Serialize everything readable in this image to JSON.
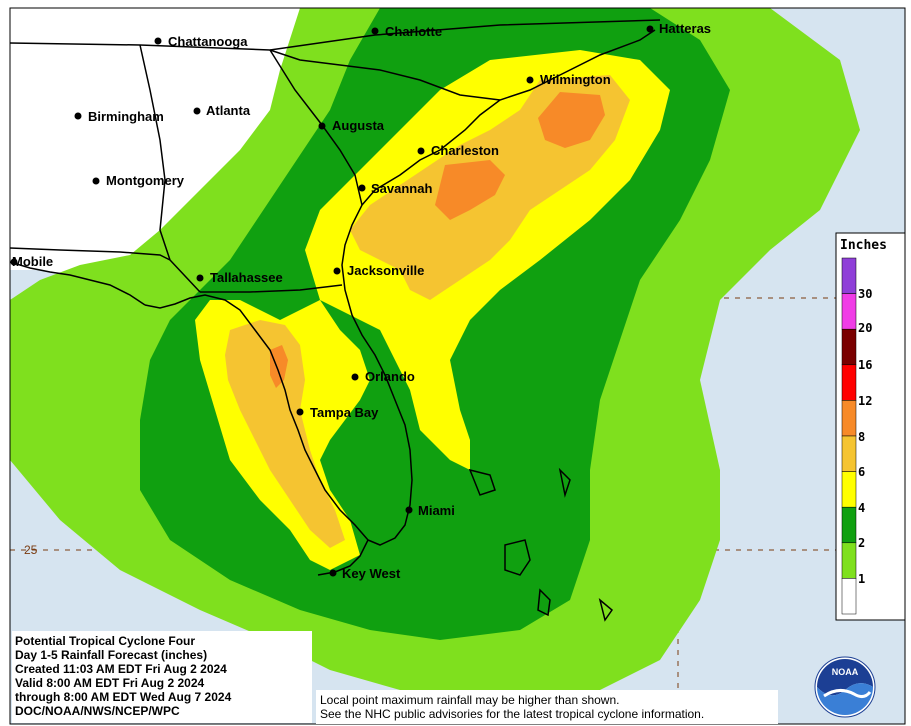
{
  "map": {
    "cities": [
      {
        "id": "chattanooga",
        "name": "Chattanooga"
      },
      {
        "id": "charlotte",
        "name": "Charlotte"
      },
      {
        "id": "hatteras",
        "name": "Hatteras"
      },
      {
        "id": "birmingham",
        "name": "Birmingham"
      },
      {
        "id": "atlanta",
        "name": "Atlanta"
      },
      {
        "id": "wilmington",
        "name": "Wilmington"
      },
      {
        "id": "augusta",
        "name": "Augusta"
      },
      {
        "id": "charleston",
        "name": "Charleston"
      },
      {
        "id": "montgomery",
        "name": "Montgomery"
      },
      {
        "id": "savannah",
        "name": "Savannah"
      },
      {
        "id": "mobile",
        "name": "Mobile"
      },
      {
        "id": "tallahassee",
        "name": "Tallahassee"
      },
      {
        "id": "jacksonville",
        "name": "Jacksonville"
      },
      {
        "id": "orlando",
        "name": "Orlando"
      },
      {
        "id": "tampa",
        "name": "Tampa Bay"
      },
      {
        "id": "miami",
        "name": "Miami"
      },
      {
        "id": "keywest",
        "name": "Key West"
      }
    ],
    "latitude_label": "25",
    "colors": {
      "ocean": "#d6e4f0",
      "land": "#ffffff",
      "lt_green": "#7fe01e",
      "green": "#10a010",
      "yellow": "#ffff00",
      "gold": "#f5c431",
      "orange": "#f78a28"
    }
  },
  "legend": {
    "title": "Inches",
    "ticks": [
      "30",
      "20",
      "16",
      "12",
      "8",
      "6",
      "4",
      "2",
      "1"
    ],
    "colors": [
      "#8f3fd8",
      "#f03ce6",
      "#7a0000",
      "#ff0000",
      "#f78a28",
      "#f5c431",
      "#ffff00",
      "#10a010",
      "#7fe01e",
      "#ffffff"
    ]
  },
  "info": {
    "title": "Potential Tropical Cyclone Four",
    "product": "Day 1-5 Rainfall Forecast (inches)",
    "created": "Created 11:03 AM EDT Fri Aug 2 2024",
    "valid": "Valid 8:00 AM EDT Fri Aug 2 2024",
    "through": "through 8:00 AM EDT Wed Aug 7 2024",
    "source": "DOC/NOAA/NWS/NCEP/WPC"
  },
  "disclaimer": {
    "line1": "Local point maximum rainfall may be higher than shown.",
    "line2": "See the NHC public advisories for the latest tropical cyclone information."
  },
  "logo": {
    "text": "NOAA"
  }
}
